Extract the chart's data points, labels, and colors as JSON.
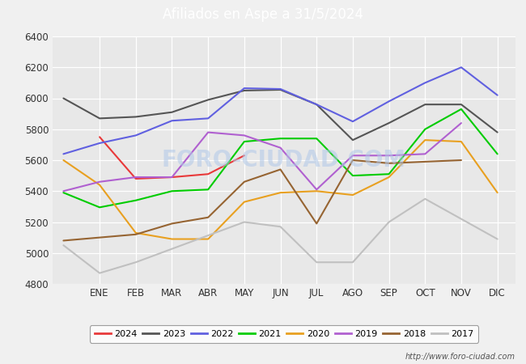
{
  "title": "Afiliados en Aspe a 31/5/2024",
  "title_color": "white",
  "title_bg_color": "#4472c4",
  "url": "http://www.foro-ciudad.com",
  "watermark": "FORO-CIUDAD.COM",
  "ylim": [
    4800,
    6400
  ],
  "yticks": [
    4800,
    5000,
    5200,
    5400,
    5600,
    5800,
    6000,
    6200,
    6400
  ],
  "month_labels": [
    "ENE",
    "FEB",
    "MAR",
    "ABR",
    "MAY",
    "JUN",
    "JUL",
    "AGO",
    "SEP",
    "OCT",
    "NOV",
    "DIC"
  ],
  "legend_order": [
    "2024",
    "2023",
    "2022",
    "2021",
    "2020",
    "2019",
    "2018",
    "2017"
  ],
  "series": {
    "2024": {
      "color": "#e8393a",
      "x": [
        0,
        1,
        2,
        3,
        4
      ],
      "y": [
        5750,
        5480,
        5490,
        5510,
        5630
      ]
    },
    "2023": {
      "color": "#555555",
      "x": [
        -1,
        0,
        1,
        2,
        3,
        4,
        5,
        6,
        7,
        8,
        9,
        10,
        11
      ],
      "y": [
        6000,
        5870,
        5880,
        5910,
        5990,
        6050,
        6055,
        5960,
        5730,
        5840,
        5960,
        5960,
        5780
      ]
    },
    "2022": {
      "color": "#6060e0",
      "x": [
        -1,
        0,
        1,
        2,
        3,
        4,
        5,
        6,
        7,
        8,
        9,
        10,
        11
      ],
      "y": [
        5640,
        5710,
        5760,
        5855,
        5870,
        6065,
        6060,
        5960,
        5850,
        5980,
        6100,
        6200,
        6020
      ]
    },
    "2021": {
      "color": "#00cc00",
      "x": [
        -1,
        0,
        1,
        2,
        3,
        4,
        5,
        6,
        7,
        8,
        9,
        10,
        11
      ],
      "y": [
        5390,
        5295,
        5340,
        5400,
        5410,
        5720,
        5740,
        5740,
        5500,
        5510,
        5800,
        5930,
        5640
      ]
    },
    "2020": {
      "color": "#e8a020",
      "x": [
        -1,
        0,
        1,
        2,
        3,
        4,
        5,
        6,
        7,
        8,
        9,
        10,
        11
      ],
      "y": [
        5600,
        5440,
        5130,
        5090,
        5090,
        5330,
        5390,
        5400,
        5375,
        5490,
        5730,
        5720,
        5390
      ]
    },
    "2019": {
      "color": "#b060d0",
      "x": [
        -1,
        0,
        1,
        2,
        3,
        4,
        5,
        6,
        7,
        8,
        9,
        10
      ],
      "y": [
        5400,
        5460,
        5490,
        5490,
        5780,
        5760,
        5680,
        5410,
        5630,
        5630,
        5640,
        5840
      ]
    },
    "2018": {
      "color": "#966432",
      "x": [
        -1,
        0,
        1,
        2,
        3,
        4,
        5,
        6,
        7,
        8,
        9,
        10
      ],
      "y": [
        5080,
        5100,
        5120,
        5190,
        5230,
        5460,
        5540,
        5190,
        5600,
        5580,
        5590,
        5600
      ]
    },
    "2017": {
      "color": "#c0c0c0",
      "x": [
        -1,
        0,
        1,
        4,
        5,
        6,
        7,
        8,
        9,
        11
      ],
      "y": [
        5050,
        4870,
        4940,
        5200,
        5170,
        4940,
        4940,
        5200,
        5350,
        5090
      ]
    }
  }
}
